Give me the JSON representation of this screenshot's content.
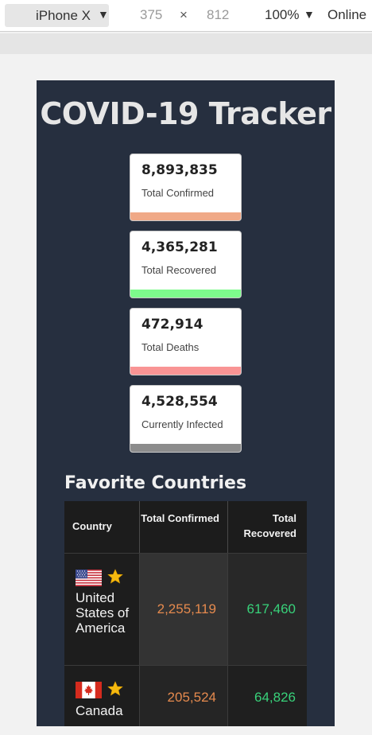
{
  "devtools": {
    "device": "iPhone X",
    "width": "375",
    "times": "×",
    "height": "812",
    "zoom": "100%",
    "network": "Online"
  },
  "app": {
    "title": "COVID-19 Tracker",
    "colors": {
      "background": "#262f3f",
      "confirmed": "#f0a987",
      "recovered": "#7dfb8c",
      "deaths": "#f99494",
      "infected": "#8c8c8c"
    }
  },
  "stats": [
    {
      "value": "8,893,835",
      "label": "Total Confirmed"
    },
    {
      "value": "4,365,281",
      "label": "Total Recovered"
    },
    {
      "value": "472,914",
      "label": "Total Deaths"
    },
    {
      "value": "4,528,554",
      "label": "Currently Infected"
    }
  ],
  "favorites": {
    "title": "Favorite Countries",
    "headers": {
      "country": "Country",
      "confirmed": "Total Confirmed",
      "recovered": "Total Recovered"
    },
    "rows": [
      {
        "country": "United States of America",
        "flag": "us-flag-icon",
        "confirmed": "2,255,119",
        "recovered": "617,460"
      },
      {
        "country": "Canada",
        "flag": "canada-flag-icon",
        "confirmed": "205,524",
        "recovered": "64,826"
      }
    ]
  }
}
